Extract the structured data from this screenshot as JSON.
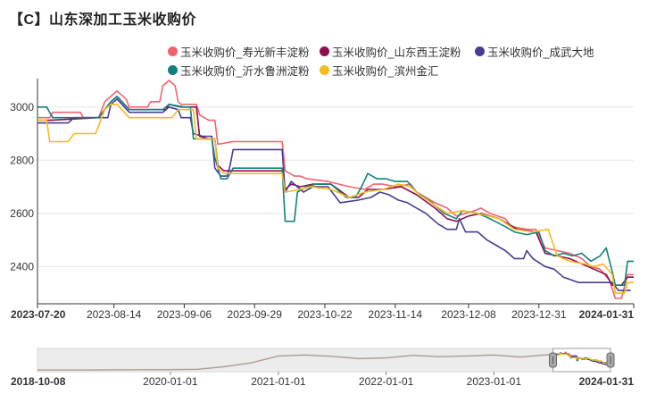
{
  "title": "【C】山东深加工玉米收购价",
  "chart_data": {
    "type": "line",
    "title": "【C】山东深加工玉米收购价",
    "xlabel": "",
    "ylabel": "",
    "ylim": [
      2260,
      3100
    ],
    "yticks": [
      2400,
      2600,
      2800,
      3000
    ],
    "x_range": [
      "2023-07-20",
      "2024-01-31"
    ],
    "x_ticks": [
      "2023-07-20",
      "2023-08-14",
      "2023-09-06",
      "2023-09-29",
      "2023-10-22",
      "2023-11-14",
      "2023-12-08",
      "2023-12-31",
      "2024-01-31"
    ],
    "legend_position": "top-right",
    "grid": true,
    "series": [
      {
        "name": "玉米收购价_寿光新丰淀粉",
        "color": "#f0636f",
        "values": [
          [
            "2023-07-20",
            2960
          ],
          [
            "2023-07-24",
            2960
          ],
          [
            "2023-07-25",
            2980
          ],
          [
            "2023-07-30",
            2980
          ],
          [
            "2023-08-03",
            2980
          ],
          [
            "2023-08-04",
            2960
          ],
          [
            "2023-08-09",
            2960
          ],
          [
            "2023-08-11",
            3020
          ],
          [
            "2023-08-13",
            3040
          ],
          [
            "2023-08-15",
            3060
          ],
          [
            "2023-08-18",
            3030
          ],
          [
            "2023-08-19",
            3000
          ],
          [
            "2023-08-25",
            3000
          ],
          [
            "2023-08-26",
            3020
          ],
          [
            "2023-08-29",
            3020
          ],
          [
            "2023-08-30",
            3080
          ],
          [
            "2023-09-01",
            3100
          ],
          [
            "2023-09-03",
            3080
          ],
          [
            "2023-09-04",
            3020
          ],
          [
            "2023-09-05",
            3010
          ],
          [
            "2023-09-10",
            3010
          ],
          [
            "2023-09-11",
            2970
          ],
          [
            "2023-09-14",
            2950
          ],
          [
            "2023-09-16",
            2950
          ],
          [
            "2023-09-17",
            2860
          ],
          [
            "2023-09-22",
            2870
          ],
          [
            "2023-10-08",
            2870
          ],
          [
            "2023-10-09",
            2760
          ],
          [
            "2023-10-12",
            2740
          ],
          [
            "2023-10-14",
            2740
          ],
          [
            "2023-10-16",
            2730
          ],
          [
            "2023-10-23",
            2720
          ],
          [
            "2023-10-30",
            2700
          ],
          [
            "2023-11-04",
            2690
          ],
          [
            "2023-11-07",
            2710
          ],
          [
            "2023-11-10",
            2710
          ],
          [
            "2023-11-14",
            2700
          ],
          [
            "2023-11-19",
            2710
          ],
          [
            "2023-11-21",
            2680
          ],
          [
            "2023-11-27",
            2640
          ],
          [
            "2023-12-01",
            2620
          ],
          [
            "2023-12-04",
            2590
          ],
          [
            "2023-12-07",
            2600
          ],
          [
            "2023-12-10",
            2610
          ],
          [
            "2023-12-12",
            2620
          ],
          [
            "2023-12-15",
            2600
          ],
          [
            "2023-12-20",
            2580
          ],
          [
            "2023-12-22",
            2550
          ],
          [
            "2023-12-27",
            2540
          ],
          [
            "2023-12-30",
            2540
          ],
          [
            "2024-01-02",
            2470
          ],
          [
            "2024-01-06",
            2460
          ],
          [
            "2024-01-10",
            2450
          ],
          [
            "2024-01-14",
            2430
          ],
          [
            "2024-01-17",
            2400
          ],
          [
            "2024-01-20",
            2390
          ],
          [
            "2024-01-23",
            2350
          ],
          [
            "2024-01-25",
            2280
          ],
          [
            "2024-01-27",
            2280
          ],
          [
            "2024-01-29",
            2370
          ],
          [
            "2024-01-31",
            2370
          ]
        ]
      },
      {
        "name": "玉米收购价_山东西王淀粉",
        "color": "#8a0f4e",
        "values": [
          [
            "2023-07-20",
            2950
          ],
          [
            "2023-07-24",
            2950
          ],
          [
            "2023-08-09",
            2960
          ],
          [
            "2023-08-13",
            3020
          ],
          [
            "2023-08-15",
            3040
          ],
          [
            "2023-08-19",
            2990
          ],
          [
            "2023-08-31",
            2990
          ],
          [
            "2023-09-01",
            3010
          ],
          [
            "2023-09-05",
            3000
          ],
          [
            "2023-09-10",
            3000
          ],
          [
            "2023-09-11",
            2890
          ],
          [
            "2023-09-14",
            2880
          ],
          [
            "2023-09-16",
            2880
          ],
          [
            "2023-09-17",
            2780
          ],
          [
            "2023-09-19",
            2760
          ],
          [
            "2023-10-08",
            2760
          ],
          [
            "2023-10-09",
            2690
          ],
          [
            "2023-10-11",
            2710
          ],
          [
            "2023-10-14",
            2700
          ],
          [
            "2023-10-18",
            2710
          ],
          [
            "2023-10-24",
            2710
          ],
          [
            "2023-10-30",
            2660
          ],
          [
            "2023-11-02",
            2660
          ],
          [
            "2023-11-05",
            2690
          ],
          [
            "2023-11-10",
            2690
          ],
          [
            "2023-11-16",
            2700
          ],
          [
            "2023-11-21",
            2670
          ],
          [
            "2023-11-27",
            2620
          ],
          [
            "2023-12-01",
            2580
          ],
          [
            "2023-12-04",
            2570
          ],
          [
            "2023-12-08",
            2590
          ],
          [
            "2023-12-12",
            2600
          ],
          [
            "2023-12-18",
            2580
          ],
          [
            "2023-12-24",
            2540
          ],
          [
            "2023-12-30",
            2530
          ],
          [
            "2024-01-02",
            2450
          ],
          [
            "2024-01-10",
            2430
          ],
          [
            "2024-01-16",
            2400
          ],
          [
            "2024-01-22",
            2370
          ],
          [
            "2024-01-24",
            2330
          ],
          [
            "2024-01-27",
            2330
          ],
          [
            "2024-01-29",
            2360
          ],
          [
            "2024-01-31",
            2360
          ]
        ]
      },
      {
        "name": "玉米收购价_成武大地",
        "color": "#4b3b90",
        "values": [
          [
            "2023-07-20",
            2940
          ],
          [
            "2023-07-30",
            2940
          ],
          [
            "2023-08-01",
            2960
          ],
          [
            "2023-08-12",
            2960
          ],
          [
            "2023-08-13",
            3010
          ],
          [
            "2023-08-15",
            3030
          ],
          [
            "2023-08-19",
            2980
          ],
          [
            "2023-08-30",
            2980
          ],
          [
            "2023-09-01",
            3000
          ],
          [
            "2023-09-04",
            2990
          ],
          [
            "2023-09-05",
            2960
          ],
          [
            "2023-09-08",
            2960
          ],
          [
            "2023-09-09",
            2900
          ],
          [
            "2023-09-12",
            2890
          ],
          [
            "2023-09-15",
            2890
          ],
          [
            "2023-09-16",
            2770
          ],
          [
            "2023-09-18",
            2740
          ],
          [
            "2023-09-20",
            2740
          ],
          [
            "2023-09-21",
            2780
          ],
          [
            "2023-09-22",
            2840
          ],
          [
            "2023-10-08",
            2840
          ],
          [
            "2023-10-09",
            2680
          ],
          [
            "2023-10-11",
            2720
          ],
          [
            "2023-10-13",
            2700
          ],
          [
            "2023-10-15",
            2680
          ],
          [
            "2023-10-18",
            2700
          ],
          [
            "2023-10-23",
            2700
          ],
          [
            "2023-10-25",
            2670
          ],
          [
            "2023-10-27",
            2640
          ],
          [
            "2023-11-02",
            2650
          ],
          [
            "2023-11-06",
            2660
          ],
          [
            "2023-11-09",
            2680
          ],
          [
            "2023-11-12",
            2670
          ],
          [
            "2023-11-15",
            2650
          ],
          [
            "2023-11-18",
            2640
          ],
          [
            "2023-11-21",
            2620
          ],
          [
            "2023-11-24",
            2600
          ],
          [
            "2023-11-28",
            2560
          ],
          [
            "2023-12-01",
            2540
          ],
          [
            "2023-12-04",
            2540
          ],
          [
            "2023-12-05",
            2580
          ],
          [
            "2023-12-07",
            2530
          ],
          [
            "2023-12-11",
            2530
          ],
          [
            "2023-12-14",
            2500
          ],
          [
            "2023-12-17",
            2480
          ],
          [
            "2023-12-20",
            2460
          ],
          [
            "2023-12-23",
            2430
          ],
          [
            "2023-12-26",
            2430
          ],
          [
            "2023-12-27",
            2460
          ],
          [
            "2023-12-29",
            2430
          ],
          [
            "2024-01-02",
            2400
          ],
          [
            "2024-01-05",
            2390
          ],
          [
            "2024-01-08",
            2360
          ],
          [
            "2024-01-13",
            2340
          ],
          [
            "2024-01-20",
            2340
          ],
          [
            "2024-01-24",
            2340
          ],
          [
            "2024-01-26",
            2310
          ],
          [
            "2024-01-29",
            2310
          ],
          [
            "2024-01-30",
            2310
          ]
        ]
      },
      {
        "name": "玉米收购价_沂水鲁洲淀粉",
        "color": "#12807b",
        "values": [
          [
            "2023-07-20",
            3000
          ],
          [
            "2023-07-23",
            3000
          ],
          [
            "2023-07-25",
            2960
          ],
          [
            "2023-08-05",
            2960
          ],
          [
            "2023-08-09",
            2960
          ],
          [
            "2023-08-13",
            3020
          ],
          [
            "2023-08-15",
            3040
          ],
          [
            "2023-08-19",
            2990
          ],
          [
            "2023-08-30",
            2990
          ],
          [
            "2023-09-01",
            3010
          ],
          [
            "2023-09-06",
            3000
          ],
          [
            "2023-09-08",
            3000
          ],
          [
            "2023-09-09",
            2880
          ],
          [
            "2023-09-15",
            2880
          ],
          [
            "2023-09-16",
            2810
          ],
          [
            "2023-09-18",
            2730
          ],
          [
            "2023-09-20",
            2730
          ],
          [
            "2023-09-22",
            2770
          ],
          [
            "2023-10-08",
            2770
          ],
          [
            "2023-10-09",
            2570
          ],
          [
            "2023-10-12",
            2570
          ],
          [
            "2023-10-13",
            2680
          ],
          [
            "2023-10-16",
            2700
          ],
          [
            "2023-10-19",
            2710
          ],
          [
            "2023-10-24",
            2710
          ],
          [
            "2023-10-29",
            2660
          ],
          [
            "2023-11-01",
            2660
          ],
          [
            "2023-11-03",
            2700
          ],
          [
            "2023-11-05",
            2750
          ],
          [
            "2023-11-08",
            2730
          ],
          [
            "2023-11-11",
            2730
          ],
          [
            "2023-11-14",
            2720
          ],
          [
            "2023-11-18",
            2720
          ],
          [
            "2023-11-21",
            2680
          ],
          [
            "2023-11-26",
            2640
          ],
          [
            "2023-11-30",
            2600
          ],
          [
            "2023-12-04",
            2580
          ],
          [
            "2023-12-06",
            2610
          ],
          [
            "2023-12-11",
            2600
          ],
          [
            "2023-12-15",
            2580
          ],
          [
            "2023-12-20",
            2550
          ],
          [
            "2023-12-23",
            2530
          ],
          [
            "2023-12-27",
            2520
          ],
          [
            "2023-12-31",
            2530
          ],
          [
            "2024-01-02",
            2460
          ],
          [
            "2024-01-05",
            2440
          ],
          [
            "2024-01-08",
            2450
          ],
          [
            "2024-01-11",
            2440
          ],
          [
            "2024-01-14",
            2450
          ],
          [
            "2024-01-17",
            2420
          ],
          [
            "2024-01-20",
            2440
          ],
          [
            "2024-01-22",
            2470
          ],
          [
            "2024-01-24",
            2380
          ],
          [
            "2024-01-25",
            2330
          ],
          [
            "2024-01-28",
            2330
          ],
          [
            "2024-01-29",
            2420
          ],
          [
            "2024-01-31",
            2420
          ]
        ]
      },
      {
        "name": "玉米收购价_滨州金汇",
        "color": "#f4bb1e",
        "values": [
          [
            "2023-07-20",
            2950
          ],
          [
            "2023-07-23",
            2950
          ],
          [
            "2023-07-24",
            2870
          ],
          [
            "2023-07-30",
            2870
          ],
          [
            "2023-08-01",
            2900
          ],
          [
            "2023-08-08",
            2900
          ],
          [
            "2023-08-11",
            2990
          ],
          [
            "2023-08-13",
            3010
          ],
          [
            "2023-08-15",
            3010
          ],
          [
            "2023-08-19",
            2960
          ],
          [
            "2023-09-02",
            2960
          ],
          [
            "2023-09-04",
            2990
          ],
          [
            "2023-09-09",
            2990
          ],
          [
            "2023-09-10",
            2880
          ],
          [
            "2023-09-16",
            2880
          ],
          [
            "2023-09-17",
            2770
          ],
          [
            "2023-09-19",
            2750
          ],
          [
            "2023-09-22",
            2750
          ],
          [
            "2023-10-08",
            2750
          ],
          [
            "2023-10-09",
            2680
          ],
          [
            "2023-10-14",
            2690
          ],
          [
            "2023-10-17",
            2700
          ],
          [
            "2023-10-24",
            2690
          ],
          [
            "2023-10-30",
            2660
          ],
          [
            "2023-11-04",
            2680
          ],
          [
            "2023-11-10",
            2690
          ],
          [
            "2023-11-15",
            2710
          ],
          [
            "2023-11-19",
            2700
          ],
          [
            "2023-11-22",
            2670
          ],
          [
            "2023-11-27",
            2630
          ],
          [
            "2023-12-01",
            2600
          ],
          [
            "2023-12-06",
            2610
          ],
          [
            "2023-12-11",
            2600
          ],
          [
            "2023-12-18",
            2580
          ],
          [
            "2023-12-23",
            2540
          ],
          [
            "2023-12-29",
            2530
          ],
          [
            "2024-01-03",
            2540
          ],
          [
            "2024-01-06",
            2440
          ],
          [
            "2024-01-10",
            2420
          ],
          [
            "2024-01-15",
            2410
          ],
          [
            "2024-01-18",
            2400
          ],
          [
            "2024-01-21",
            2410
          ],
          [
            "2024-01-24",
            2370
          ],
          [
            "2024-01-25",
            2300
          ],
          [
            "2024-01-28",
            2300
          ],
          [
            "2024-01-29",
            2340
          ],
          [
            "2024-01-31",
            2340
          ]
        ]
      }
    ],
    "navigator": {
      "range": [
        "2018-10-08",
        "2024-01-31"
      ],
      "ticks": [
        "2018-10-08",
        "2020-01-01",
        "2021-01-01",
        "2022-01-01",
        "2023-01-01",
        "2024-01-31"
      ]
    }
  }
}
